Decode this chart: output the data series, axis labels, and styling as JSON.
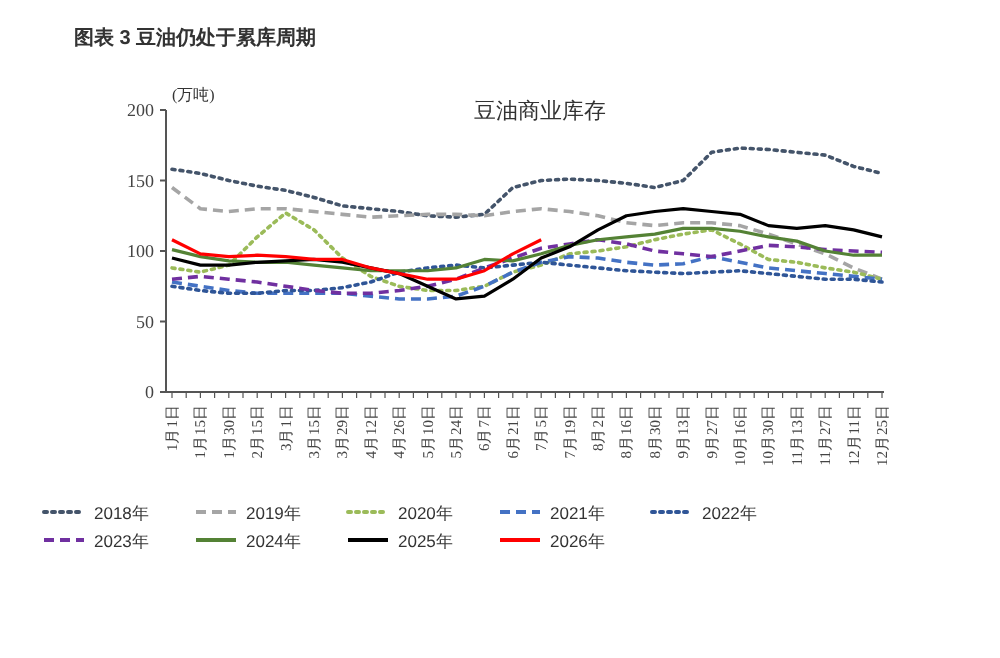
{
  "chart_data": {
    "type": "line",
    "title": "图表 3 豆油仍处于累库周期",
    "subtitle": "豆油商业库存",
    "ylabel": "(万吨)",
    "categories": [
      "1月1日",
      "1月15日",
      "1月30日",
      "2月15日",
      "3月1日",
      "3月15日",
      "3月29日",
      "4月12日",
      "4月26日",
      "5月10日",
      "5月24日",
      "6月7日",
      "6月21日",
      "7月5日",
      "7月19日",
      "8月2日",
      "8月16日",
      "8月30日",
      "9月13日",
      "9月27日",
      "10月16日",
      "10月30日",
      "11月13日",
      "11月27日",
      "12月11日",
      "12月25日"
    ],
    "ylim": [
      0,
      200
    ],
    "yticks": [
      0,
      50,
      100,
      150,
      200
    ],
    "grid": false,
    "legend": "bottom",
    "marker": "none",
    "series": [
      {
        "name": "2018年",
        "color": "#44546a",
        "line_style": "dotted",
        "values": [
          158,
          155,
          150,
          146,
          143,
          138,
          132,
          130,
          128,
          125,
          124,
          126,
          145,
          150,
          151,
          150,
          148,
          145,
          150,
          170,
          173,
          172,
          170,
          168,
          160,
          155
        ]
      },
      {
        "name": "2019年",
        "color": "#a5a5a5",
        "line_style": "dashed",
        "values": [
          145,
          130,
          128,
          130,
          130,
          128,
          126,
          124,
          125,
          126,
          126,
          125,
          128,
          130,
          128,
          125,
          120,
          118,
          120,
          120,
          118,
          112,
          105,
          98,
          88,
          80
        ]
      },
      {
        "name": "2020年",
        "color": "#9bbb59",
        "line_style": "dotted",
        "values": [
          88,
          85,
          90,
          110,
          127,
          115,
          95,
          82,
          75,
          72,
          72,
          75,
          85,
          90,
          98,
          100,
          103,
          108,
          112,
          115,
          105,
          94,
          92,
          88,
          85,
          80
        ]
      },
      {
        "name": "2021年",
        "color": "#4472c4",
        "line_style": "dashed",
        "values": [
          78,
          75,
          72,
          70,
          70,
          70,
          70,
          68,
          66,
          66,
          68,
          75,
          85,
          92,
          96,
          95,
          92,
          90,
          91,
          96,
          92,
          88,
          86,
          84,
          82,
          80
        ]
      },
      {
        "name": "2022年",
        "color": "#2f5597",
        "line_style": "dotted",
        "values": [
          75,
          72,
          70,
          70,
          72,
          72,
          74,
          78,
          85,
          88,
          90,
          88,
          90,
          92,
          90,
          88,
          86,
          85,
          84,
          85,
          86,
          84,
          82,
          80,
          80,
          78
        ]
      },
      {
        "name": "2023年",
        "color": "#7030a0",
        "line_style": "dashed",
        "values": [
          80,
          82,
          80,
          78,
          75,
          72,
          70,
          70,
          72,
          75,
          80,
          88,
          95,
          102,
          105,
          108,
          105,
          100,
          98,
          96,
          100,
          104,
          103,
          101,
          100,
          99
        ]
      },
      {
        "name": "2024年",
        "color": "#548235",
        "line_style": "solid",
        "values": [
          101,
          96,
          93,
          92,
          92,
          90,
          88,
          86,
          86,
          86,
          88,
          94,
          93,
          98,
          104,
          108,
          110,
          112,
          116,
          116,
          114,
          110,
          107,
          100,
          97,
          97
        ]
      },
      {
        "name": "2025年",
        "color": "#000000",
        "line_style": "solid",
        "values": [
          95,
          90,
          90,
          92,
          93,
          94,
          92,
          88,
          84,
          75,
          66,
          68,
          80,
          95,
          103,
          115,
          125,
          128,
          130,
          128,
          126,
          118,
          116,
          118,
          115,
          110
        ]
      },
      {
        "name": "2026年",
        "color": "#ff0000",
        "line_style": "solid",
        "values": [
          108,
          98,
          96,
          97,
          96,
          94,
          94,
          88,
          84,
          80,
          80,
          86,
          98,
          108,
          null,
          null,
          null,
          null,
          null,
          null,
          null,
          null,
          null,
          null,
          null,
          null
        ]
      }
    ]
  }
}
